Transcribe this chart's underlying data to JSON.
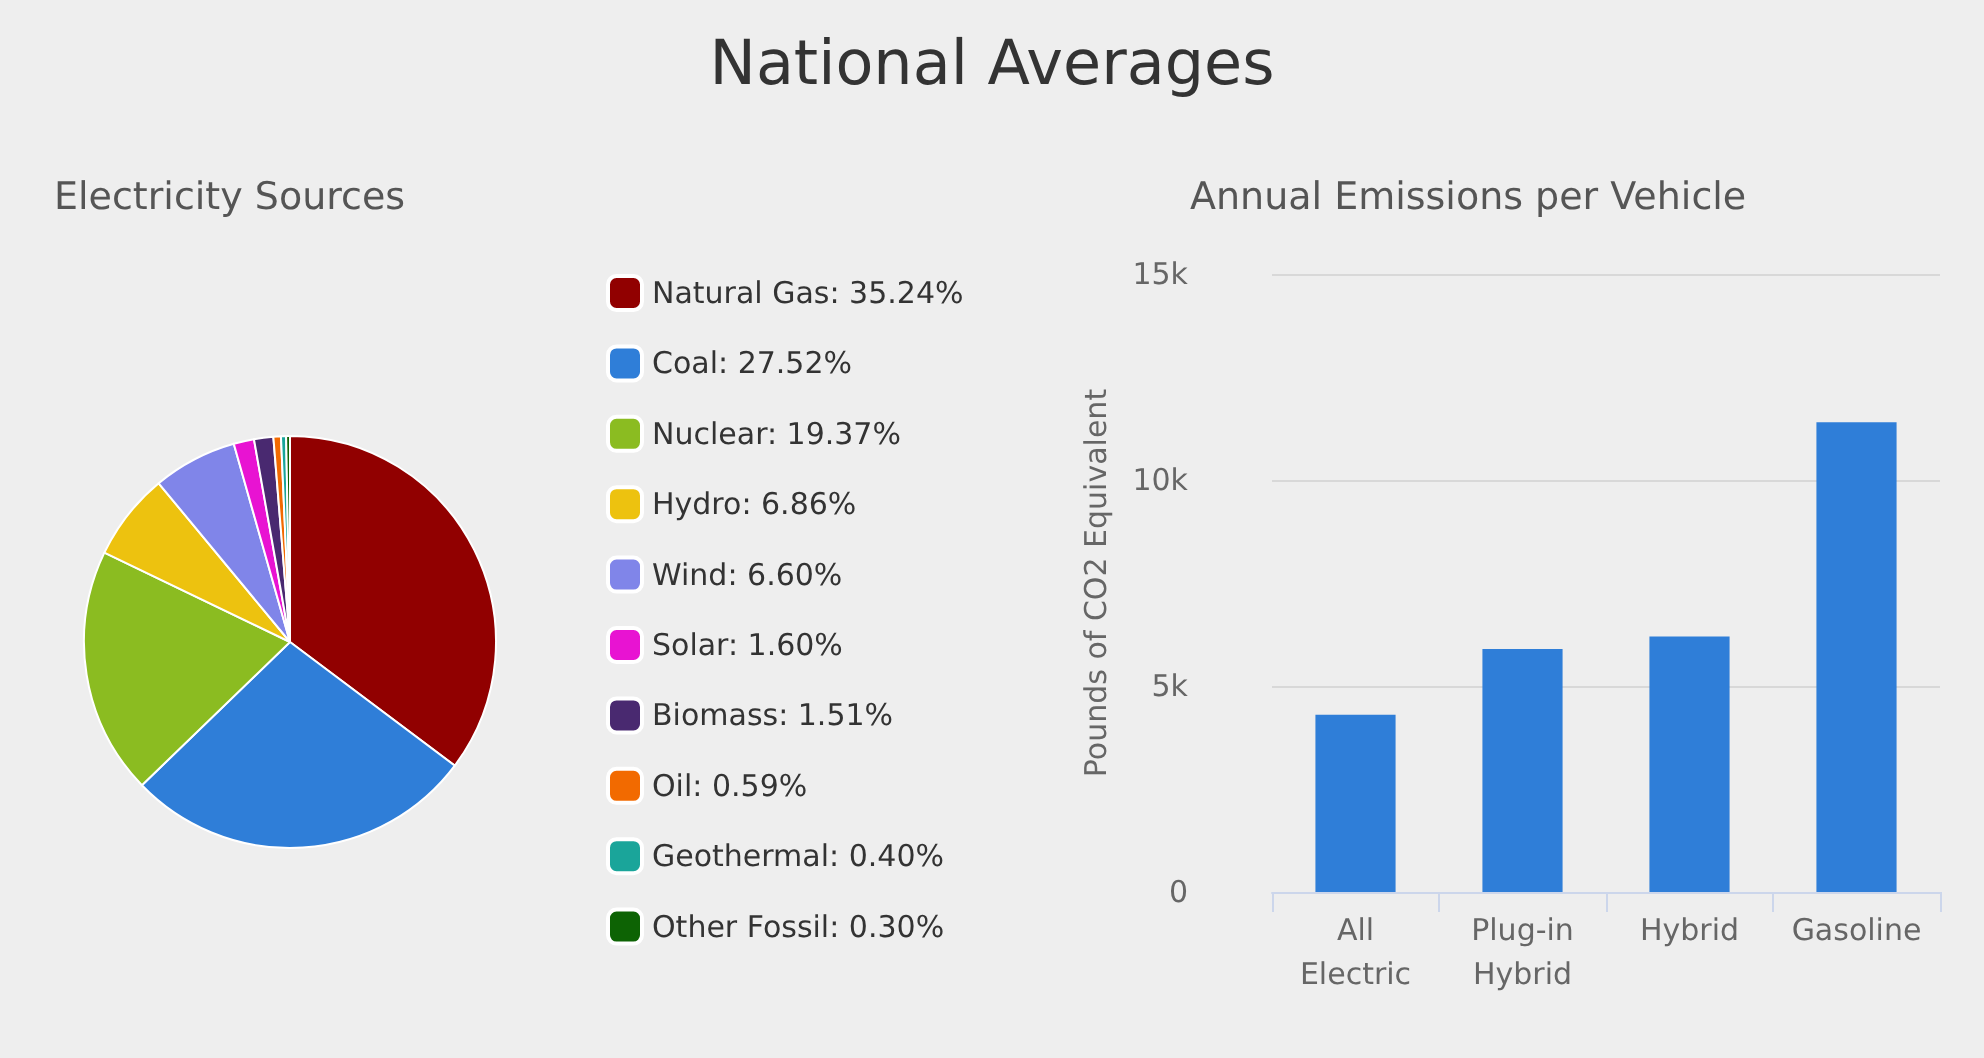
{
  "chart_data": [
    {
      "type": "pie",
      "title": "Electricity Sources",
      "annotations": [
        "National Averages"
      ],
      "categories": [
        "Natural Gas",
        "Coal",
        "Nuclear",
        "Hydro",
        "Wind",
        "Solar",
        "Biomass",
        "Oil",
        "Geothermal",
        "Other Fossil"
      ],
      "values": [
        35.24,
        27.52,
        19.37,
        6.86,
        6.6,
        1.6,
        1.51,
        0.59,
        0.4,
        0.3
      ],
      "value_labels": [
        "35.24%",
        "27.52%",
        "19.37%",
        "6.86%",
        "6.60%",
        "1.60%",
        "1.51%",
        "0.59%",
        "0.40%",
        "0.30%"
      ],
      "colors": [
        "#910000",
        "#2f7ed8",
        "#8bbc21",
        "#edc20f",
        "#8085e9",
        "#e813d2",
        "#492970",
        "#f26a00",
        "#1aa59a",
        "#0d6304"
      ],
      "legend": "right"
    },
    {
      "type": "bar",
      "title": "Annual Emissions per Vehicle",
      "ylabel": "Pounds of CO2 Equivalent",
      "categories": [
        "All\nElectric",
        "Plug-in\nHybrid",
        "Hybrid",
        "Gasoline"
      ],
      "values": [
        4300,
        5900,
        6200,
        11400
      ],
      "color": "#2f7ed8",
      "ylim": [
        0,
        15000
      ],
      "yticks": [
        {
          "value": 0,
          "label": "0"
        },
        {
          "value": 5000,
          "label": "5k"
        },
        {
          "value": 10000,
          "label": "10k"
        },
        {
          "value": 15000,
          "label": "15k"
        }
      ],
      "grid": "y"
    }
  ]
}
